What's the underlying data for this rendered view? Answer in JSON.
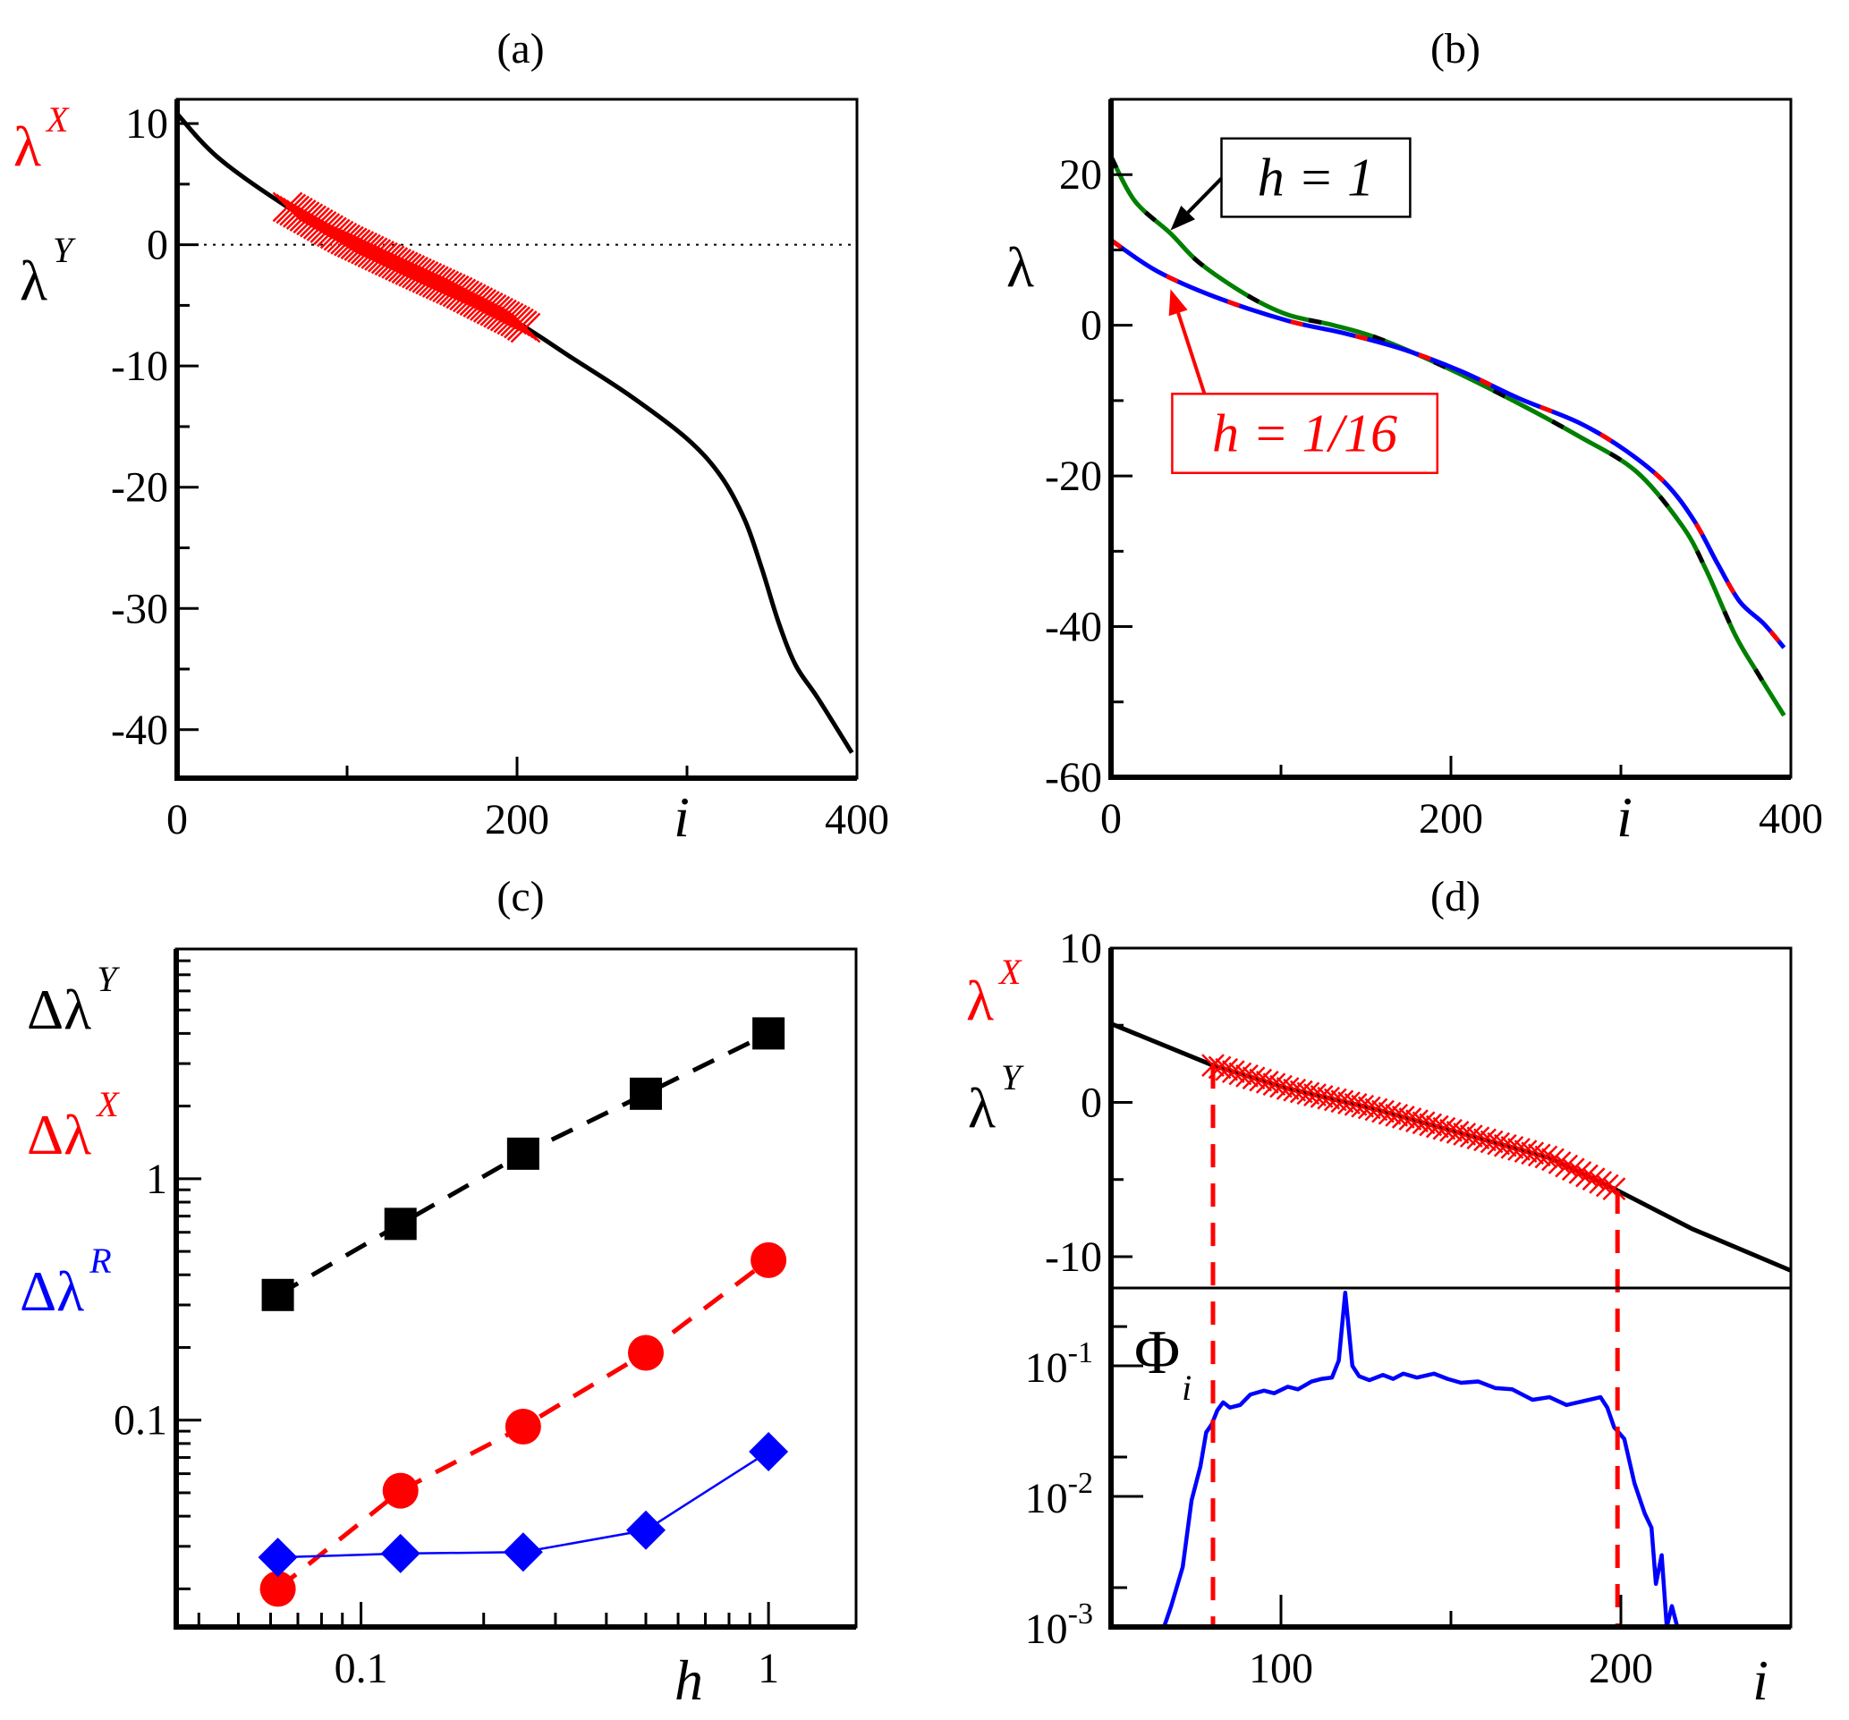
{
  "figure": {
    "colors": {
      "black": "#000000",
      "red": "#ff0000",
      "blue": "#0000ff",
      "green": "#008000"
    }
  },
  "chart_data": [
    {
      "id": "a",
      "type": "line",
      "title": "(a)",
      "xlabel": "i",
      "ylabel_parts": [
        {
          "text": "λ",
          "sup": "X",
          "color": "#ff0000"
        },
        {
          "text": "λ",
          "sup": "Y",
          "color": "#000000"
        }
      ],
      "xlim": [
        0,
        400
      ],
      "ylim": [
        -44,
        12
      ],
      "x_ticks": [
        0,
        200,
        400
      ],
      "x_tick_labels": [
        "0",
        "200",
        "400"
      ],
      "x_minor_ticks": [
        100,
        300
      ],
      "y_ticks": [
        10,
        0,
        -10,
        -20,
        -30,
        -40
      ],
      "y_tick_labels": [
        "10",
        "0",
        "-10",
        "-20",
        "-30",
        "-40"
      ],
      "y_minor_ticks": [
        5,
        -5,
        -15,
        -25,
        -35
      ],
      "reference_line": {
        "y": 0,
        "style": "dotted"
      },
      "series": [
        {
          "name": "lambda_Y",
          "color": "#000000",
          "style": "solid",
          "x": [
            0,
            24,
            64,
            98,
            131,
            165,
            200,
            232,
            266,
            300,
            320,
            334,
            344,
            354,
            364,
            377,
            397
          ],
          "y": [
            10.8,
            7.2,
            3.2,
            0.5,
            -1.7,
            -3.9,
            -6.4,
            -9.3,
            -12.4,
            -16.0,
            -19.1,
            -22.7,
            -26.7,
            -31.2,
            -34.7,
            -37.4,
            -41.9
          ]
        },
        {
          "name": "lambda_X",
          "color": "#ff0000",
          "marker": "x",
          "i_range": [
            65,
            205
          ],
          "i_step": 2,
          "follows": "lambda_Y"
        }
      ]
    },
    {
      "id": "b",
      "type": "line",
      "title": "(b)",
      "xlabel": "i",
      "ylabel": "λ",
      "xlim": [
        0,
        400
      ],
      "ylim": [
        -60,
        30
      ],
      "x_ticks": [
        0,
        200,
        400
      ],
      "x_tick_labels": [
        "0",
        "200",
        "400"
      ],
      "x_minor_ticks": [
        100,
        300
      ],
      "y_ticks": [
        20,
        0,
        -20,
        -40,
        -60
      ],
      "y_tick_labels": [
        "20",
        "0",
        "-20",
        "-40",
        "-60"
      ],
      "y_minor_ticks": [
        10,
        -10,
        -30,
        -50
      ],
      "series": [
        {
          "name": "h = 1",
          "colors": [
            "#008000",
            "#000000"
          ],
          "style": "two-color-dashed",
          "x": [
            0,
            14,
            35,
            52,
            80,
            104,
            131,
            158,
            199,
            240,
            275,
            309,
            336,
            350,
            367,
            380,
            396
          ],
          "y": [
            22.4,
            16.5,
            12.2,
            8.3,
            4.0,
            1.4,
            0.0,
            -1.8,
            -5.8,
            -10.4,
            -14.7,
            -19.4,
            -26.6,
            -32.4,
            -41.0,
            -46.0,
            -51.8
          ]
        },
        {
          "name": "h = 1/16",
          "colors": [
            "#0000ff",
            "#ff0000"
          ],
          "style": "two-color-dashed",
          "x": [
            0,
            27,
            62,
            104,
            138,
            172,
            206,
            240,
            275,
            302,
            326,
            343,
            357,
            370,
            384,
            396
          ],
          "y": [
            11.3,
            7.2,
            3.7,
            0.6,
            -1.1,
            -3.2,
            -6.1,
            -9.7,
            -12.9,
            -16.5,
            -20.9,
            -25.9,
            -31.7,
            -36.7,
            -39.6,
            -42.8
          ]
        }
      ],
      "annotations": [
        {
          "text": "h = 1",
          "color": "#000000",
          "box": {
            "x": [
              65,
              176
            ],
            "y": [
              14.4,
              24.8
            ]
          },
          "arrow_from": [
            65,
            19.5
          ],
          "arrow_to": [
            35,
            12.6
          ]
        },
        {
          "text": "h = 1/16",
          "color": "#ff0000",
          "box": {
            "x": [
              36,
              192
            ],
            "y": [
              -19.6,
              -9.1
            ]
          },
          "arrow_from": [
            55,
            -9.1
          ],
          "arrow_to": [
            35,
            4.8
          ]
        }
      ]
    },
    {
      "id": "c",
      "type": "scatter",
      "title": "(c)",
      "xlabel": "h",
      "xscale": "log",
      "yscale": "log",
      "xlim": [
        0.0352,
        1.64
      ],
      "ylim": [
        0.0139,
        8.95
      ],
      "x_ticks": [
        0.1,
        1
      ],
      "x_tick_labels": [
        "0.1",
        "1"
      ],
      "x_minor_ticks": [
        0.04,
        0.05,
        0.06,
        0.07,
        0.08,
        0.09,
        0.2,
        0.3,
        0.4,
        0.5,
        0.6,
        0.7,
        0.8,
        0.9
      ],
      "y_ticks": [
        1,
        0.1
      ],
      "y_tick_labels": [
        "1",
        "0.1"
      ],
      "y_minor_ticks": [
        0.02,
        0.03,
        0.04,
        0.05,
        0.06,
        0.07,
        0.08,
        0.09,
        0.2,
        0.3,
        0.4,
        0.5,
        0.6,
        0.7,
        0.8,
        0.9,
        2,
        3,
        4,
        5,
        6,
        7,
        8
      ],
      "ylabel_parts": [
        {
          "text": "Δλ",
          "sup": "Y",
          "color": "#000000"
        },
        {
          "text": "Δλ",
          "sup": "X",
          "color": "#ff0000"
        },
        {
          "text": "Δλ",
          "sup": "R",
          "color": "#0000ff"
        }
      ],
      "x": [
        0.0625,
        0.125,
        0.25,
        0.5,
        1
      ],
      "series": [
        {
          "name": "Δλ^Y",
          "color": "#000000",
          "marker": "square",
          "line": "dashed",
          "values": [
            0.33,
            0.65,
            1.27,
            2.25,
            4.0
          ]
        },
        {
          "name": "Δλ^X",
          "color": "#ff0000",
          "marker": "circle",
          "line": "dashed",
          "values": [
            0.02,
            0.051,
            0.094,
            0.19,
            0.46
          ]
        },
        {
          "name": "Δλ^R",
          "color": "#0000ff",
          "marker": "diamond",
          "line": "solid-thin",
          "values": [
            0.027,
            0.028,
            0.0284,
            0.035,
            0.074
          ]
        }
      ]
    },
    {
      "id": "d",
      "type": "line",
      "title": "(d)",
      "xlabel": "i",
      "xlim": [
        50,
        250
      ],
      "x_ticks": [
        100,
        200
      ],
      "x_tick_labels": [
        "100",
        "200"
      ],
      "x_minor_ticks": [
        150
      ],
      "vertical_markers": {
        "x": [
          80,
          199
        ],
        "color": "#ff0000",
        "style": "dashed"
      },
      "upper": {
        "ylim": [
          -12.03,
          10
        ],
        "y_ticks": [
          10,
          0,
          -10
        ],
        "y_tick_labels": [
          "10",
          "0",
          "-10"
        ],
        "y_minor_ticks": [
          5,
          -5
        ],
        "ylabel_parts": [
          {
            "text": "λ",
            "sup": "X",
            "color": "#ff0000"
          },
          {
            "text": "λ",
            "sup": "Y",
            "color": "#000000"
          }
        ],
        "series": [
          {
            "name": "lambda_Y",
            "color": "#000000",
            "x": [
              50,
              80,
              102,
              127,
              153,
              179,
              198,
              221,
              250
            ],
            "y": [
              5.1,
              2.4,
              0.9,
              -0.4,
              -2.0,
              -3.6,
              -5.6,
              -8.2,
              -10.9
            ]
          },
          {
            "name": "lambda_X",
            "color": "#ff0000",
            "marker": "x",
            "i_range": [
              80,
              198
            ],
            "i_step": 2,
            "follows": "lambda_Y"
          }
        ]
      },
      "lower": {
        "yscale": "log",
        "ylim_log10": [
          -3,
          -0.404
        ],
        "y_ticks_log10": [
          -1,
          -2,
          -3
        ],
        "y_tick_labels": [
          {
            "base": "10",
            "exp": "-1"
          },
          {
            "base": "10",
            "exp": "-2"
          },
          {
            "base": "10",
            "exp": "-3"
          }
        ],
        "y_minor_ticks": [
          0.2,
          0.02,
          0.002
        ],
        "ylabel": {
          "text": "Φ",
          "sub": "i"
        },
        "series": [
          {
            "name": "Phi_i",
            "color": "#0000ff",
            "x": [
              65.6,
              67.7,
              71.1,
              73.7,
              76.3,
              78,
              79.6,
              81.3,
              83,
              85,
              88,
              91,
              95,
              98,
              102,
              105,
              109,
              112,
              115,
              117,
              118.9,
              121,
              123,
              126,
              130,
              133,
              136,
              140,
              145,
              149,
              153,
              158,
              163,
              168,
              174,
              179,
              184,
              189,
              194,
              196,
              198,
              201,
              204,
              207,
              209,
              210.3,
              212,
              213.5,
              215,
              216.6
            ],
            "log10_y": [
              -3,
              -2.84,
              -2.54,
              -2.03,
              -1.77,
              -1.51,
              -1.45,
              -1.34,
              -1.28,
              -1.32,
              -1.3,
              -1.22,
              -1.19,
              -1.21,
              -1.16,
              -1.18,
              -1.12,
              -1.1,
              -1.09,
              -0.96,
              -0.44,
              -1.0,
              -1.08,
              -1.11,
              -1.07,
              -1.1,
              -1.06,
              -1.09,
              -1.06,
              -1.1,
              -1.13,
              -1.12,
              -1.17,
              -1.18,
              -1.26,
              -1.24,
              -1.3,
              -1.27,
              -1.24,
              -1.32,
              -1.47,
              -1.56,
              -1.9,
              -2.13,
              -2.24,
              -2.67,
              -2.45,
              -3,
              -2.84,
              -3
            ]
          }
        ]
      }
    }
  ]
}
